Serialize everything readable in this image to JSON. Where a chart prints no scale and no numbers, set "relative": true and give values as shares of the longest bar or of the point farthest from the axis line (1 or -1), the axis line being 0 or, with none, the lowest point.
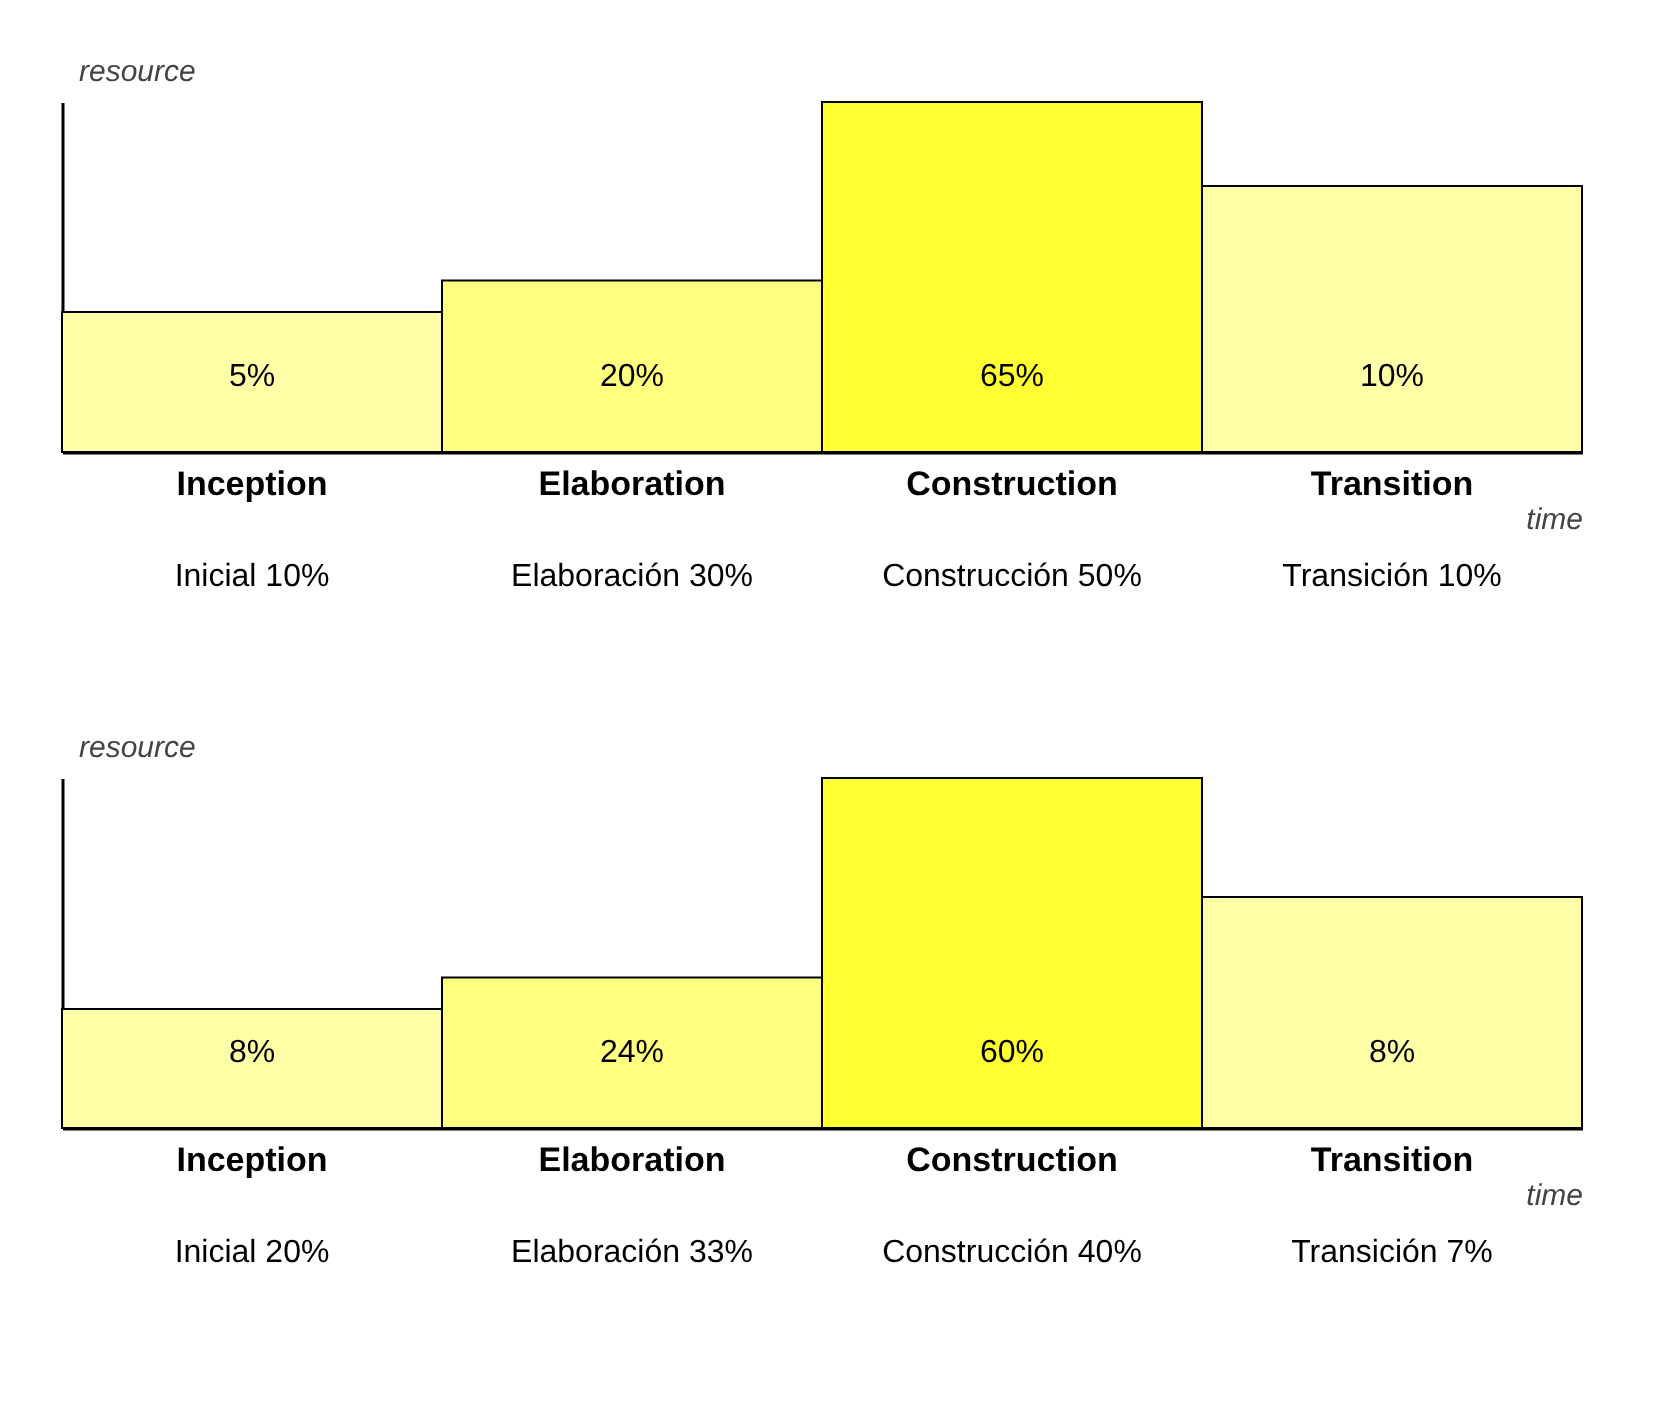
{
  "chart_data": [
    {
      "type": "bar",
      "relative": true,
      "xlabel": "time",
      "ylabel": "resource",
      "categories": [
        "Inception",
        "Elaboration",
        "Construction",
        "Transition"
      ],
      "values": [
        0.4,
        0.49,
        1,
        0.76
      ],
      "colors": [
        "#ffffa8",
        "#ffff80",
        "#ffff33",
        "#ffffa8"
      ],
      "annotations": [
        "5%",
        "20%",
        "65%",
        "10%",
        "Inicial 10%",
        "Elaboración 30%",
        "Construcción 50%",
        "Transición 10%"
      ]
    },
    {
      "type": "bar",
      "relative": true,
      "xlabel": "time",
      "ylabel": "resource",
      "categories": [
        "Inception",
        "Elaboration",
        "Construction",
        "Transition"
      ],
      "values": [
        0.34,
        0.43,
        1,
        0.66
      ],
      "colors": [
        "#ffffa8",
        "#ffff80",
        "#ffff33",
        "#ffffa8"
      ],
      "annotations": [
        "8%",
        "24%",
        "60%",
        "8%",
        "Inicial 20%",
        "Elaboración 33%",
        "Construcción 40%",
        "Transición 7%"
      ]
    }
  ]
}
